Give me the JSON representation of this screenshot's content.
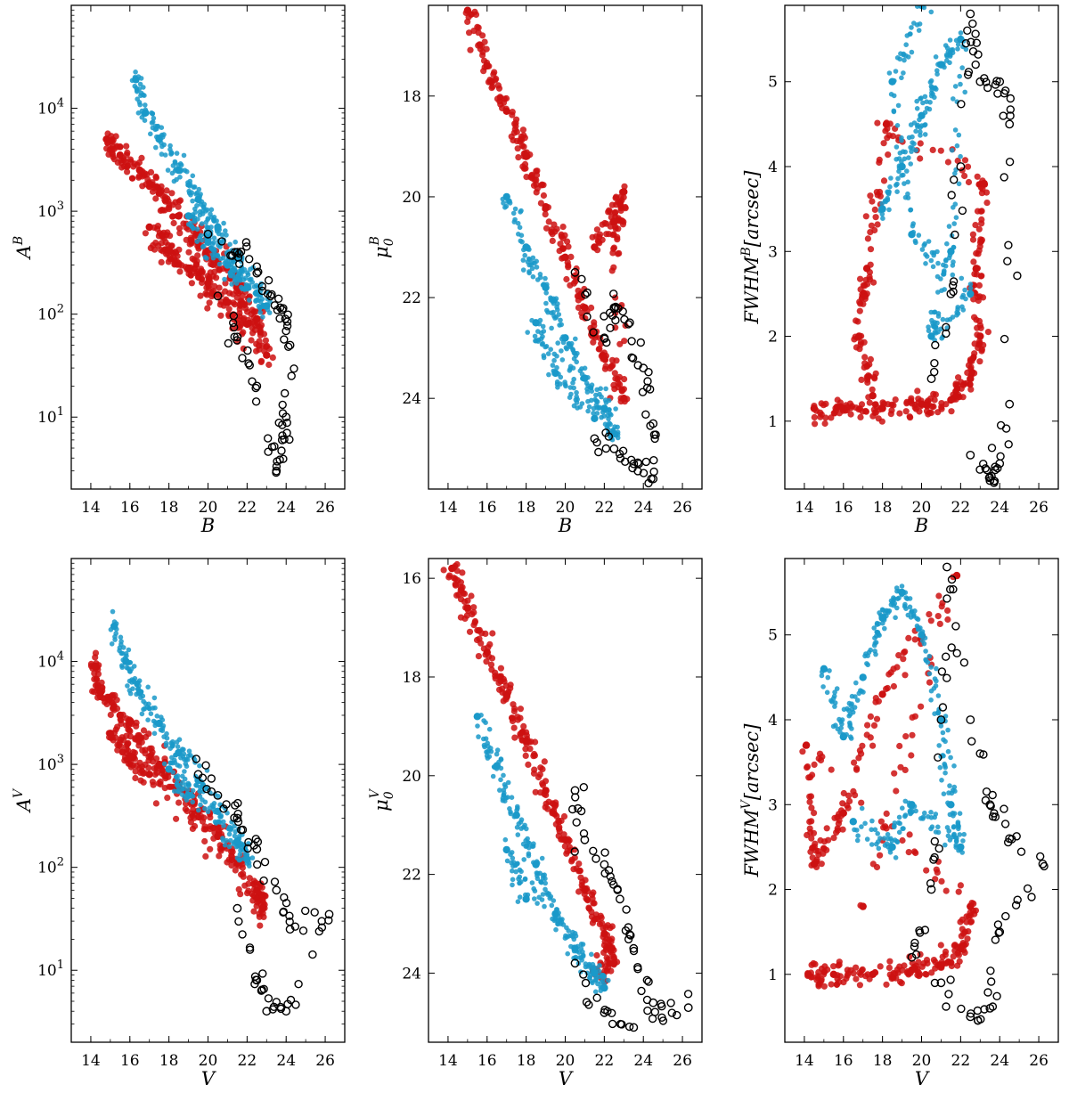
{
  "colors": {
    "blue": "#1a99c9",
    "red": "#cc1111",
    "black": "#000000"
  },
  "chart_data": [
    {
      "id": "p1",
      "type": "scatter",
      "xlabel": "B",
      "ylabel": "A^B",
      "xlim": [
        13,
        27
      ],
      "ylim": [
        2,
        100000
      ],
      "ylog": true,
      "xticks": [
        "14",
        "16",
        "18",
        "20",
        "22",
        "24",
        "26"
      ],
      "yticks": [
        {
          "v": 10,
          "label": "10^1"
        },
        {
          "v": 100,
          "label": "10^2"
        },
        {
          "v": 1000,
          "label": "10^3"
        },
        {
          "v": 10000,
          "label": "10^4"
        }
      ],
      "series": [
        {
          "color": "red",
          "values": [
            [
              14.8,
              5000
            ],
            [
              15.5,
              3500
            ],
            [
              16.5,
              2500
            ],
            [
              17.5,
              1500
            ],
            [
              18.5,
              900
            ],
            [
              19.5,
              500
            ],
            [
              20.5,
              320
            ],
            [
              21.5,
              180
            ],
            [
              22.5,
              90
            ],
            [
              23.0,
              40
            ],
            [
              17.0,
              700
            ],
            [
              18.0,
              420
            ],
            [
              19.0,
              280
            ],
            [
              20.0,
              200
            ],
            [
              21.0,
              130
            ],
            [
              22.0,
              80
            ]
          ]
        },
        {
          "color": "blue",
          "values": [
            [
              16.3,
              19000
            ],
            [
              16.8,
              9000
            ],
            [
              17.5,
              5000
            ],
            [
              18.5,
              2500
            ],
            [
              19.5,
              1300
            ],
            [
              20.5,
              700
            ],
            [
              21.5,
              350
            ],
            [
              22.5,
              160
            ],
            [
              23.0,
              120
            ],
            [
              19.0,
              900
            ],
            [
              20.0,
              500
            ],
            [
              21.0,
              300
            ],
            [
              22.0,
              180
            ]
          ]
        },
        {
          "color": "black",
          "values": [
            [
              20.0,
              600
            ],
            [
              21.5,
              400
            ],
            [
              22.5,
              250
            ],
            [
              23.2,
              150
            ],
            [
              23.8,
              110
            ],
            [
              24.2,
              50
            ],
            [
              24.0,
              10
            ],
            [
              23.8,
              6
            ],
            [
              23.5,
              3
            ],
            [
              22.5,
              20
            ],
            [
              21.5,
              60
            ],
            [
              20.5,
              150
            ]
          ]
        }
      ]
    },
    {
      "id": "p2",
      "type": "scatter",
      "xlabel": "B",
      "ylabel": "μ_0^B",
      "xlim": [
        13,
        27
      ],
      "ylim": [
        25.8,
        16.2
      ],
      "ylog": false,
      "xticks": [
        "14",
        "16",
        "18",
        "20",
        "22",
        "24",
        "26"
      ],
      "yticks": [
        {
          "v": 18,
          "label": "18"
        },
        {
          "v": 20,
          "label": "20"
        },
        {
          "v": 22,
          "label": "22"
        },
        {
          "v": 24,
          "label": "24"
        }
      ],
      "series": [
        {
          "color": "red",
          "values": [
            [
              15.0,
              16.3
            ],
            [
              16.0,
              17.4
            ],
            [
              17.0,
              18.3
            ],
            [
              18.0,
              19.2
            ],
            [
              19.0,
              20.2
            ],
            [
              20.0,
              21.2
            ],
            [
              21.0,
              22.2
            ],
            [
              22.0,
              23.2
            ],
            [
              23.0,
              24.0
            ],
            [
              22.5,
              20.5
            ],
            [
              23.0,
              19.9
            ],
            [
              21.5,
              21.0
            ]
          ]
        },
        {
          "color": "blue",
          "values": [
            [
              17.0,
              20.0
            ],
            [
              18.0,
              21.0
            ],
            [
              19.0,
              21.8
            ],
            [
              20.0,
              22.8
            ],
            [
              21.0,
              23.6
            ],
            [
              22.0,
              24.2
            ],
            [
              22.5,
              24.7
            ],
            [
              18.5,
              22.5
            ],
            [
              19.5,
              23.5
            ],
            [
              21.5,
              24.4
            ]
          ]
        },
        {
          "color": "black",
          "values": [
            [
              20.5,
              21.5
            ],
            [
              22.0,
              22.8
            ],
            [
              22.5,
              22.2
            ],
            [
              23.3,
              22.5
            ],
            [
              24.0,
              23.4
            ],
            [
              24.5,
              24.5
            ],
            [
              24.5,
              25.6
            ],
            [
              23.5,
              25.3
            ],
            [
              22.5,
              25.0
            ],
            [
              21.5,
              24.8
            ]
          ]
        }
      ]
    },
    {
      "id": "p3",
      "type": "scatter",
      "xlabel": "B",
      "ylabel": "FWHM^B[arcsec]",
      "xlim": [
        13,
        27
      ],
      "ylim": [
        0.2,
        5.9
      ],
      "ylog": false,
      "xticks": [
        "14",
        "16",
        "18",
        "20",
        "22",
        "24",
        "26"
      ],
      "yticks": [
        {
          "v": 1,
          "label": "1"
        },
        {
          "v": 2,
          "label": "2"
        },
        {
          "v": 3,
          "label": "3"
        },
        {
          "v": 4,
          "label": "4"
        },
        {
          "v": 5,
          "label": "5"
        }
      ],
      "series": [
        {
          "color": "red",
          "values": [
            [
              14.5,
              1.15
            ],
            [
              16.0,
              1.15
            ],
            [
              18.0,
              1.15
            ],
            [
              20.0,
              1.2
            ],
            [
              21.5,
              1.25
            ],
            [
              22.5,
              1.5
            ],
            [
              23.0,
              2.0
            ],
            [
              22.8,
              2.8
            ],
            [
              23.2,
              3.8
            ],
            [
              18.2,
              4.5
            ],
            [
              17.2,
              2.8
            ],
            [
              16.8,
              2.0
            ],
            [
              17.5,
              1.3
            ]
          ]
        },
        {
          "color": "blue",
          "values": [
            [
              18.0,
              3.5
            ],
            [
              19.0,
              4.0
            ],
            [
              20.0,
              4.6
            ],
            [
              21.0,
              5.2
            ],
            [
              22.0,
              5.5
            ],
            [
              21.5,
              3.0
            ],
            [
              20.5,
              2.0
            ],
            [
              22.5,
              2.5
            ],
            [
              19.5,
              3.2
            ],
            [
              18.5,
              5.0
            ],
            [
              20.0,
              5.9
            ]
          ]
        },
        {
          "color": "black",
          "values": [
            [
              20.5,
              1.5
            ],
            [
              21.5,
              2.5
            ],
            [
              22.0,
              4.0
            ],
            [
              22.5,
              5.8
            ],
            [
              23.0,
              5.0
            ],
            [
              24.0,
              5.0
            ],
            [
              24.5,
              4.5
            ],
            [
              24.5,
              1.2
            ],
            [
              24.0,
              0.5
            ],
            [
              23.5,
              0.3
            ],
            [
              22.5,
              0.6
            ]
          ]
        }
      ]
    },
    {
      "id": "p4",
      "type": "scatter",
      "xlabel": "V",
      "ylabel": "A^V",
      "xlim": [
        13,
        27
      ],
      "ylim": [
        2,
        100000
      ],
      "ylog": true,
      "xticks": [
        "14",
        "16",
        "18",
        "20",
        "22",
        "24",
        "26"
      ],
      "yticks": [
        {
          "v": 10,
          "label": "10^1"
        },
        {
          "v": 100,
          "label": "10^2"
        },
        {
          "v": 1000,
          "label": "10^3"
        },
        {
          "v": 10000,
          "label": "10^4"
        }
      ],
      "series": [
        {
          "color": "red",
          "values": [
            [
              14.2,
              9000
            ],
            [
              14.5,
              5000
            ],
            [
              15.5,
              3000
            ],
            [
              16.5,
              1800
            ],
            [
              17.5,
              1000
            ],
            [
              18.5,
              600
            ],
            [
              19.5,
              350
            ],
            [
              20.5,
              200
            ],
            [
              21.5,
              110
            ],
            [
              22.5,
              60
            ],
            [
              22.8,
              40
            ],
            [
              15.0,
              2000
            ],
            [
              16.0,
              1200
            ],
            [
              17.0,
              800
            ]
          ]
        },
        {
          "color": "blue",
          "values": [
            [
              15.2,
              22000
            ],
            [
              15.8,
              10000
            ],
            [
              16.5,
              5000
            ],
            [
              17.5,
              2500
            ],
            [
              18.5,
              1300
            ],
            [
              19.5,
              700
            ],
            [
              20.5,
              350
            ],
            [
              21.5,
              180
            ],
            [
              22.0,
              120
            ],
            [
              18.0,
              900
            ],
            [
              19.0,
              500
            ]
          ]
        },
        {
          "color": "black",
          "values": [
            [
              19.5,
              800
            ],
            [
              20.5,
              500
            ],
            [
              21.5,
              300
            ],
            [
              22.5,
              150
            ],
            [
              23.5,
              60
            ],
            [
              24.2,
              25
            ],
            [
              26.2,
              35
            ],
            [
              24.0,
              4
            ],
            [
              23.0,
              4
            ],
            [
              22.5,
              8
            ],
            [
              21.5,
              40
            ]
          ]
        }
      ]
    },
    {
      "id": "p5",
      "type": "scatter",
      "xlabel": "V",
      "ylabel": "μ_0^V",
      "xlim": [
        13,
        27
      ],
      "ylim": [
        25.4,
        15.6
      ],
      "ylog": false,
      "xticks": [
        "14",
        "16",
        "18",
        "20",
        "22",
        "24",
        "26"
      ],
      "yticks": [
        {
          "v": 16,
          "label": "16"
        },
        {
          "v": 18,
          "label": "18"
        },
        {
          "v": 20,
          "label": "20"
        },
        {
          "v": 22,
          "label": "22"
        },
        {
          "v": 24,
          "label": "24"
        }
      ],
      "series": [
        {
          "color": "red",
          "values": [
            [
              14.2,
              15.8
            ],
            [
              15.0,
              16.6
            ],
            [
              16.0,
              17.5
            ],
            [
              17.0,
              18.4
            ],
            [
              18.0,
              19.3
            ],
            [
              19.0,
              20.3
            ],
            [
              20.0,
              21.3
            ],
            [
              21.0,
              22.3
            ],
            [
              22.0,
              23.2
            ],
            [
              22.5,
              23.8
            ],
            [
              21.5,
              24.0
            ]
          ]
        },
        {
          "color": "blue",
          "values": [
            [
              15.5,
              18.8
            ],
            [
              16.5,
              19.8
            ],
            [
              17.5,
              20.8
            ],
            [
              18.5,
              21.8
            ],
            [
              19.5,
              22.8
            ],
            [
              20.5,
              23.5
            ],
            [
              21.5,
              24.0
            ],
            [
              22.0,
              24.3
            ],
            [
              17.0,
              21.5
            ],
            [
              18.0,
              22.5
            ]
          ]
        },
        {
          "color": "black",
          "values": [
            [
              20.5,
              20.3
            ],
            [
              21.0,
              21.3
            ],
            [
              22.0,
              21.8
            ],
            [
              22.8,
              22.5
            ],
            [
              23.5,
              23.5
            ],
            [
              24.5,
              24.6
            ],
            [
              26.3,
              24.7
            ],
            [
              23.5,
              25.1
            ],
            [
              22.0,
              24.8
            ],
            [
              20.5,
              23.8
            ]
          ]
        }
      ]
    },
    {
      "id": "p6",
      "type": "scatter",
      "xlabel": "V",
      "ylabel": "FWHM^V[arcsec]",
      "xlim": [
        13,
        27
      ],
      "ylim": [
        0.2,
        5.9
      ],
      "ylog": false,
      "xticks": [
        "14",
        "16",
        "18",
        "20",
        "22",
        "24",
        "26"
      ],
      "yticks": [
        {
          "v": 1,
          "label": "1"
        },
        {
          "v": 2,
          "label": "2"
        },
        {
          "v": 3,
          "label": "3"
        },
        {
          "v": 4,
          "label": "4"
        },
        {
          "v": 5,
          "label": "5"
        }
      ],
      "series": [
        {
          "color": "red",
          "values": [
            [
              14.2,
              1.0
            ],
            [
              15.5,
              1.0
            ],
            [
              17.5,
              1.0
            ],
            [
              19.5,
              1.05
            ],
            [
              21.0,
              1.1
            ],
            [
              22.0,
              1.3
            ],
            [
              22.5,
              1.8
            ],
            [
              14.1,
              3.7
            ],
            [
              14.5,
              2.3
            ],
            [
              16.0,
              2.9
            ],
            [
              18.0,
              4.3
            ],
            [
              21.8,
              5.7
            ],
            [
              17.0,
              1.8
            ]
          ]
        },
        {
          "color": "blue",
          "values": [
            [
              15.0,
              4.6
            ],
            [
              16.0,
              3.8
            ],
            [
              17.0,
              4.5
            ],
            [
              18.0,
              5.2
            ],
            [
              19.0,
              5.5
            ],
            [
              20.0,
              5.0
            ],
            [
              21.0,
              4.0
            ],
            [
              21.5,
              3.0
            ],
            [
              22.0,
              2.5
            ],
            [
              19.5,
              3.0
            ],
            [
              18.5,
              2.5
            ],
            [
              16.5,
              2.8
            ]
          ]
        },
        {
          "color": "black",
          "values": [
            [
              19.5,
              1.2
            ],
            [
              20.5,
              2.0
            ],
            [
              21.0,
              4.0
            ],
            [
              21.3,
              5.8
            ],
            [
              22.5,
              4.0
            ],
            [
              23.5,
              3.0
            ],
            [
              24.5,
              2.6
            ],
            [
              26.2,
              2.3
            ],
            [
              24.0,
              1.5
            ],
            [
              23.5,
              0.6
            ],
            [
              22.5,
              0.5
            ],
            [
              21.0,
              0.9
            ]
          ]
        }
      ]
    }
  ]
}
